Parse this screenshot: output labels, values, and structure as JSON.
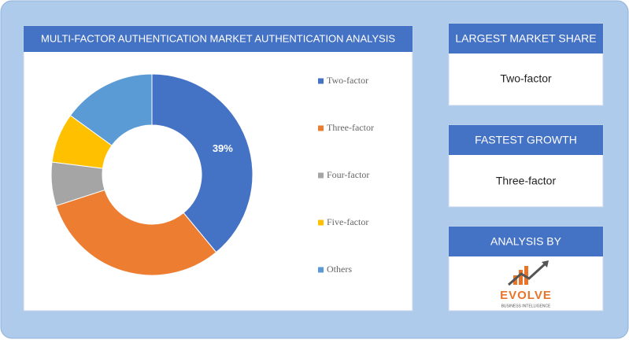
{
  "chart_data": {
    "type": "donut",
    "title": "MULTI-FACTOR AUTHENTICATION MARKET AUTHENTICATION ANALYSIS",
    "categories": [
      "Two-factor",
      "Three-factor",
      "Four-factor",
      "Five-factor",
      "Others"
    ],
    "values": [
      39,
      31,
      7,
      8,
      15
    ],
    "value_labels": [
      "39%",
      null,
      null,
      null,
      null
    ],
    "colors": [
      "#4472c4",
      "#ed7d31",
      "#a5a5a5",
      "#ffc000",
      "#5b9bd5"
    ],
    "legend": "right"
  },
  "panels": [
    {
      "title": "LARGEST MARKET SHARE",
      "value": "Two-factor"
    },
    {
      "title": "FASTEST GROWTH",
      "value": "Three-factor"
    },
    {
      "title": "ANALYSIS BY",
      "logo": "EVOLVE",
      "logo_sub": "BUSINESS INTELLIGENCE"
    }
  ]
}
